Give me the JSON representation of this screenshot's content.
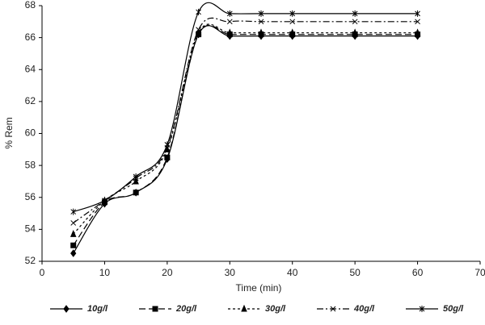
{
  "chart_data": {
    "type": "line",
    "x_label": "Time  (min)",
    "y_label": "% Rem",
    "x": [
      5,
      10,
      15,
      20,
      25,
      30,
      35,
      40,
      50,
      60
    ],
    "series": [
      {
        "name": "10g/l",
        "color": "#000000",
        "marker": "diamond",
        "dash": "solid",
        "values": [
          52.5,
          55.6,
          56.3,
          58.4,
          66.2,
          66.1,
          66.1,
          66.1,
          66.1,
          66.1
        ]
      },
      {
        "name": "20g/l",
        "color": "#000000",
        "marker": "square",
        "dash": "longdash",
        "values": [
          53.0,
          55.7,
          56.3,
          58.5,
          66.2,
          66.2,
          66.2,
          66.2,
          66.2,
          66.2
        ]
      },
      {
        "name": "30g/l",
        "color": "#000000",
        "marker": "triangle",
        "dash": "shortdash",
        "values": [
          53.7,
          55.8,
          57.0,
          59.0,
          66.3,
          66.3,
          66.3,
          66.3,
          66.3,
          66.3
        ]
      },
      {
        "name": "40g/l",
        "color": "#000000",
        "marker": "x",
        "dash": "dashdot",
        "values": [
          54.4,
          55.8,
          57.2,
          59.1,
          66.5,
          67.0,
          67.0,
          67.0,
          67.0,
          67.0
        ]
      },
      {
        "name": "50g/l",
        "color": "#000000",
        "marker": "star",
        "dash": "solid",
        "values": [
          55.1,
          55.8,
          57.3,
          59.3,
          67.6,
          67.5,
          67.5,
          67.5,
          67.5,
          67.5
        ]
      }
    ],
    "xlim": [
      0,
      70
    ],
    "xticks": [
      0,
      10,
      20,
      30,
      40,
      50,
      60,
      70
    ],
    "ylim": [
      52,
      68
    ],
    "yticks": [
      52,
      54,
      56,
      58,
      60,
      62,
      64,
      66,
      68
    ],
    "grid": false,
    "legend": "bottom"
  }
}
